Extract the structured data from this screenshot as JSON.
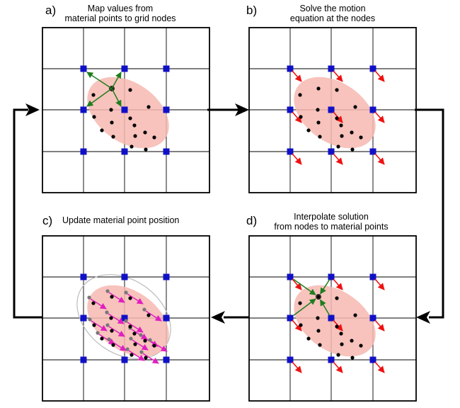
{
  "panels": {
    "a": {
      "letter": "a)",
      "caption_line1": "Map values from",
      "caption_line2": "material points to grid nodes"
    },
    "b": {
      "letter": "b)",
      "caption_line1": "Solve the motion",
      "caption_line2": "equation at the nodes"
    },
    "c": {
      "letter": "c)",
      "caption_line1": "Update material point position",
      "caption_line2": ""
    },
    "d": {
      "letter": "d)",
      "caption_line1": "Interpolate solution",
      "caption_line2": "from nodes to material points"
    }
  },
  "colors": {
    "grid_node": "#1010c8",
    "material_region": "#f6b8b0",
    "material_point": "#000000",
    "mapping_arrow": "#1e7d1e",
    "velocity_arrow": "#ee1111",
    "displacement_arrow": "#e020c0",
    "cycle_arrow": "#000000"
  }
}
